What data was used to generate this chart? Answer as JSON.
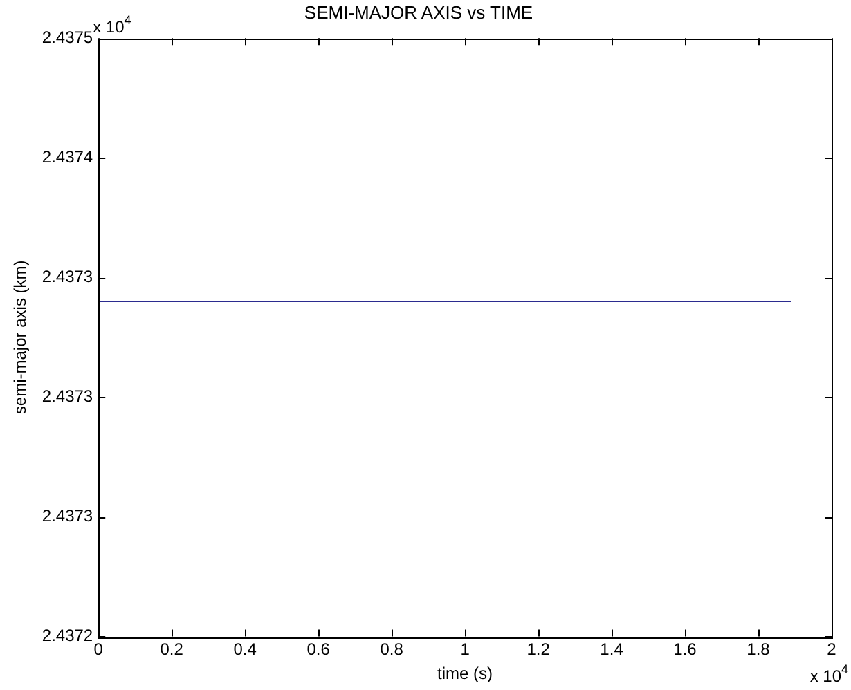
{
  "chart_data": {
    "type": "line",
    "title": "SEMI-MAJOR AXIS vs TIME",
    "xlabel": "time (s)",
    "ylabel": "semi-major axis (km)",
    "annotations": [
      "x 10$^{4}$",
      "x 10$^{4}$"
    ],
    "series": [
      {
        "color": "#2b2b8f",
        "x": [
          0,
          1.89
        ],
        "values": [
          2.43734,
          2.43734
        ]
      }
    ],
    "xlim": [
      0,
      2
    ],
    "xticks": [
      0,
      0.2,
      0.4,
      0.6,
      0.8,
      1,
      1.2,
      1.4,
      1.6,
      1.8,
      2
    ],
    "ylim": [
      2.4372,
      2.43745
    ],
    "yticks": [
      2.4372,
      {
        "value": 2.43725,
        "label": "2.4373"
      },
      2.4373,
      {
        "value": 2.43735,
        "label": "2.4373"
      },
      2.4374,
      {
        "value": 2.43745,
        "label": "2.4375"
      }
    ],
    "grid": false,
    "legend": false,
    "marker": "none",
    "line_style": "solid"
  }
}
